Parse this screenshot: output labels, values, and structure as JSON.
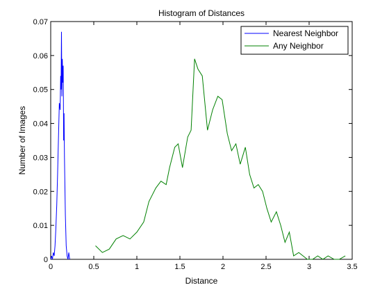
{
  "chart_data": {
    "type": "line",
    "title": "Histogram of Distances",
    "xlabel": "Distance",
    "ylabel": "Number of Images",
    "xlim": [
      0,
      3.5
    ],
    "ylim": [
      0,
      0.07
    ],
    "xticks": [
      "0",
      "0.5",
      "1",
      "1.5",
      "2",
      "2.5",
      "3",
      "3.5"
    ],
    "yticks": [
      "0",
      "0.01",
      "0.02",
      "0.03",
      "0.04",
      "0.05",
      "0.06",
      "0.07"
    ],
    "grid": false,
    "legend_position": "top-right",
    "series": [
      {
        "name": "Nearest Neighbor",
        "color": "#0000ff",
        "x": [
          0.0,
          0.01,
          0.02,
          0.03,
          0.04,
          0.05,
          0.06,
          0.07,
          0.08,
          0.09,
          0.1,
          0.11,
          0.115,
          0.12,
          0.125,
          0.13,
          0.135,
          0.14,
          0.145,
          0.15,
          0.155,
          0.16,
          0.17,
          0.18,
          0.19,
          0.2,
          0.21,
          0.22
        ],
        "y": [
          0.0,
          0.001,
          0.0,
          0.002,
          0.001,
          0.004,
          0.009,
          0.016,
          0.025,
          0.036,
          0.046,
          0.044,
          0.054,
          0.05,
          0.067,
          0.048,
          0.059,
          0.052,
          0.057,
          0.035,
          0.043,
          0.03,
          0.013,
          0.004,
          0.001,
          0.0,
          0.002,
          0.0
        ]
      },
      {
        "name": "Any Neighbor",
        "color": "#008000",
        "x": [
          0.52,
          0.6,
          0.68,
          0.76,
          0.84,
          0.92,
          1.0,
          1.08,
          1.14,
          1.22,
          1.28,
          1.34,
          1.38,
          1.44,
          1.48,
          1.53,
          1.59,
          1.63,
          1.67,
          1.71,
          1.76,
          1.82,
          1.88,
          1.94,
          1.99,
          2.05,
          2.1,
          2.15,
          2.2,
          2.26,
          2.31,
          2.36,
          2.41,
          2.46,
          2.51,
          2.56,
          2.62,
          2.67,
          2.72,
          2.77,
          2.82,
          2.88,
          2.93,
          2.98,
          3.04,
          3.1,
          3.16,
          3.22,
          3.29,
          3.35,
          3.42
        ],
        "y": [
          0.004,
          0.002,
          0.003,
          0.006,
          0.007,
          0.006,
          0.008,
          0.011,
          0.017,
          0.021,
          0.023,
          0.022,
          0.027,
          0.033,
          0.034,
          0.027,
          0.036,
          0.038,
          0.059,
          0.056,
          0.054,
          0.038,
          0.044,
          0.048,
          0.047,
          0.037,
          0.032,
          0.034,
          0.028,
          0.033,
          0.025,
          0.021,
          0.022,
          0.02,
          0.015,
          0.011,
          0.014,
          0.01,
          0.005,
          0.008,
          0.001,
          0.002,
          0.001,
          0.0,
          0.0,
          0.001,
          0.0,
          0.001,
          0.0,
          0.0,
          0.001
        ]
      }
    ]
  }
}
